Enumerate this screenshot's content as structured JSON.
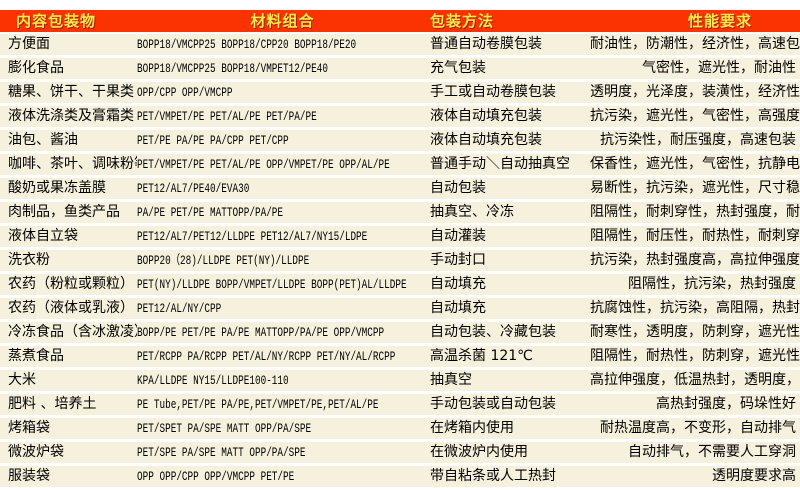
{
  "colors": {
    "header_bg": "#fb3300",
    "header_text": "#ffeb4d",
    "header_shadow": "#a81c00",
    "row_bg": "#f5f1dc",
    "page_bg": "#ffffff",
    "body_text": "#000000"
  },
  "table": {
    "columns": [
      {
        "key": "item",
        "label": "内容包装物"
      },
      {
        "key": "materials",
        "label": "材料组合"
      },
      {
        "key": "method",
        "label": "包装方法"
      },
      {
        "key": "performance",
        "label": "性能要求"
      }
    ],
    "rows": [
      {
        "item": "方便面",
        "materials": "BOPP18/VMCPP25  BOPP18/CPP20  BOPP18/PE20",
        "method": "普通自动卷膜包装",
        "performance": "耐油性，防潮性，经济性，高速包装"
      },
      {
        "item": "膨化食品",
        "materials": "BOPP18/VMCPP25  BOPP18/VMPET12/PE40",
        "method": "充气包装",
        "performance": "气密性，遮光性，耐油性"
      },
      {
        "item": "糖果、饼干、干果类",
        "materials": "OPP/CPP OPP/VMCPP",
        "method": "手工或自动卷膜包装",
        "performance": "透明度，光泽度，装潢性，经济性"
      },
      {
        "item": "液体洗涤类及膏霜类",
        "materials": "PET/VMPET/PE PET/AL/PE  PET/PA/PE",
        "method": "液体自动填充包装",
        "performance": "抗污染，遮光性，气密性，高强度"
      },
      {
        "item": "油包、酱油",
        "materials": "PET/PE  PA/PE PA/CPP PET/CPP",
        "method": "液体自动填充包装",
        "performance": "抗污染性，耐压强度，高速包装"
      },
      {
        "item": "咖啡、茶叶、调味粉等",
        "materials": "PET/VMPET/PE PET/AL/PE OPP/VMPET/PE OPP/AL/PE",
        "method": "普通手动＼自动抽真空",
        "performance": "保香性，遮光性，气密性，抗静电"
      },
      {
        "item": "酸奶或果冻盖膜",
        "materials": "PET12/AL7/PE40/EVA30",
        "method": "自动包装",
        "performance": "易断性，抗污染，遮光性，尺寸稳定"
      },
      {
        "item": "肉制品，鱼类产品",
        "materials": "PA/PE PET/PE MATTOPP/PA/PE",
        "method": "抽真空、冷冻",
        "performance": "阻隔性，耐刺穿性，热封强度，耐热性"
      },
      {
        "item": "液体自立袋",
        "materials": "PET12/AL7/PET12/LLDPE PET12/AL7/NY15/LDPE",
        "method": "自动灌装",
        "performance": "阻隔性，耐压性，耐热性，耐刺穿，抗污染"
      },
      {
        "item": "洗衣粉",
        "materials": "BOPP20（28)/LLDPE PET(NY)/LLDPE",
        "method": "手动封口",
        "performance": "抗污染，热封强度高，高拉伸强度"
      },
      {
        "item": "农药（粉粒或颗粒）",
        "materials": "PET(NY)/LLDPE BOPP/VMPET/LLDPE BOPP(PET)AL/LLDPE",
        "method": "自动填充",
        "performance": "阻隔性，抗污染，热封强度"
      },
      {
        "item": "农药（液体或乳液）",
        "materials": "PET12/AL/NY/CPP",
        "method": "自动填充",
        "performance": "抗腐蚀性，抗污染，高阻隔，热封强度"
      },
      {
        "item": "冷冻食品（含冰激凌）",
        "materials": "BOPP/PE PET/PE PA/PE MATTOPP/PA/PE OPP/VMCPP",
        "method": "自动包装、冷藏包装",
        "performance": "耐寒性，透明度，防刺穿，遮光性"
      },
      {
        "item": "蒸煮食品",
        "materials": "PET/RCPP PA/RCPP PET/AL/NY/RCPP PET/NY/AL/RCPP",
        "method": "高温杀菌 121℃",
        "performance": "阻隔性，耐热性，防刺穿，遮光性"
      },
      {
        "item": "大米",
        "materials": "KPA/LLDPE NY15/LLDPE100-110",
        "method": "抽真空",
        "performance": "高拉伸强度，低温热封，透明度，手挽强度高"
      },
      {
        "item": "肥料 、培养土",
        "materials": "PE Tube,PET/PE  PA/PE,PET/VMPET/PE,PET/AL/PE",
        "method": "手动包装或自动包装",
        "performance": "高热封强度，码垛性好"
      },
      {
        "item": "烤箱袋",
        "materials": "PET/SPET PA/SPE MATT OPP/PA/SPE",
        "method": "在烤箱内使用",
        "performance": "耐热温度高，不变形，自动排气"
      },
      {
        "item": "微波炉袋",
        "materials": "PET/SPE PA/SPE MATT OPP/PA/SPE",
        "method": "在微波炉内使用",
        "performance": "自动排气，不需要人工穿洞"
      },
      {
        "item": "服装袋",
        "materials": "OPP  OPP/CPP OPP/VMCPP PET/PE",
        "method": "带自粘条或人工热封",
        "performance": "透明度要求高"
      }
    ]
  }
}
